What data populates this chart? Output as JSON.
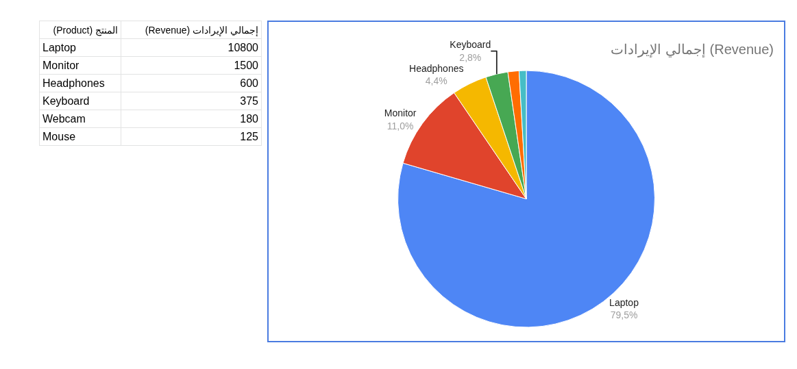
{
  "chart_data": [
    {
      "type": "other",
      "annotations": [
        "المنتج (Product)",
        "إجمالي الإيرادات (Revenue)"
      ],
      "categories": [
        "Laptop",
        "Monitor",
        "Headphones",
        "Keyboard",
        "Webcam",
        "Mouse"
      ],
      "values": [
        10800,
        1500,
        600,
        375,
        180,
        125
      ],
      "data_labels": true
    },
    {
      "type": "pie",
      "title": "إجمالي الإيرادات (Revenue)",
      "categories": [
        "Laptop",
        "Monitor",
        "Headphones",
        "Keyboard",
        null,
        null
      ],
      "values": [
        79.5,
        11.0,
        4.4,
        2.8,
        1.4,
        0.9
      ],
      "colors": [
        "#4e86f5",
        "#e0442c",
        "#f5b800",
        "#47a853",
        "#ff6d01",
        "#46bdc6"
      ],
      "value_labels": [
        "79,5%",
        "11,0%",
        "4,4%",
        "2,8%",
        null,
        null
      ],
      "legend": false
    }
  ]
}
